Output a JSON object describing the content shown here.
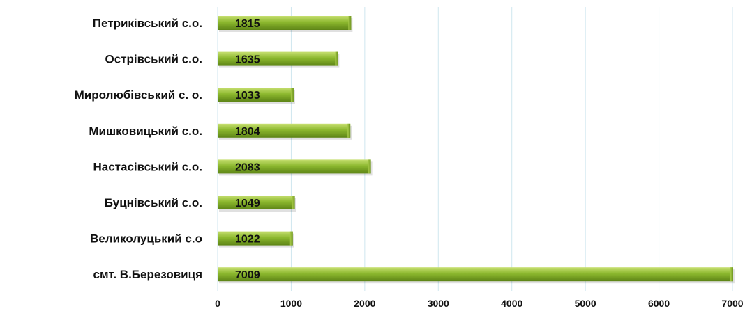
{
  "chart_data": {
    "type": "bar",
    "orientation": "horizontal",
    "categories": [
      "Петриківський с.о.",
      "Острівський с.о.",
      "Миролюбівський с. о.",
      "Мишковицький с.о.",
      "Настасівський с.о.",
      "Буцнівський с.о.",
      "Великолуцький с.о",
      "смт. В.Березовиця"
    ],
    "values": [
      1815,
      1635,
      1033,
      1804,
      2083,
      1049,
      1022,
      7009
    ],
    "xticks": [
      "0",
      "1000",
      "2000",
      "3000",
      "4000",
      "5000",
      "6000",
      "7000"
    ],
    "xlim": [
      0,
      7000
    ],
    "grid": true,
    "bar_color": "#8cb82e",
    "data_labels": true
  }
}
